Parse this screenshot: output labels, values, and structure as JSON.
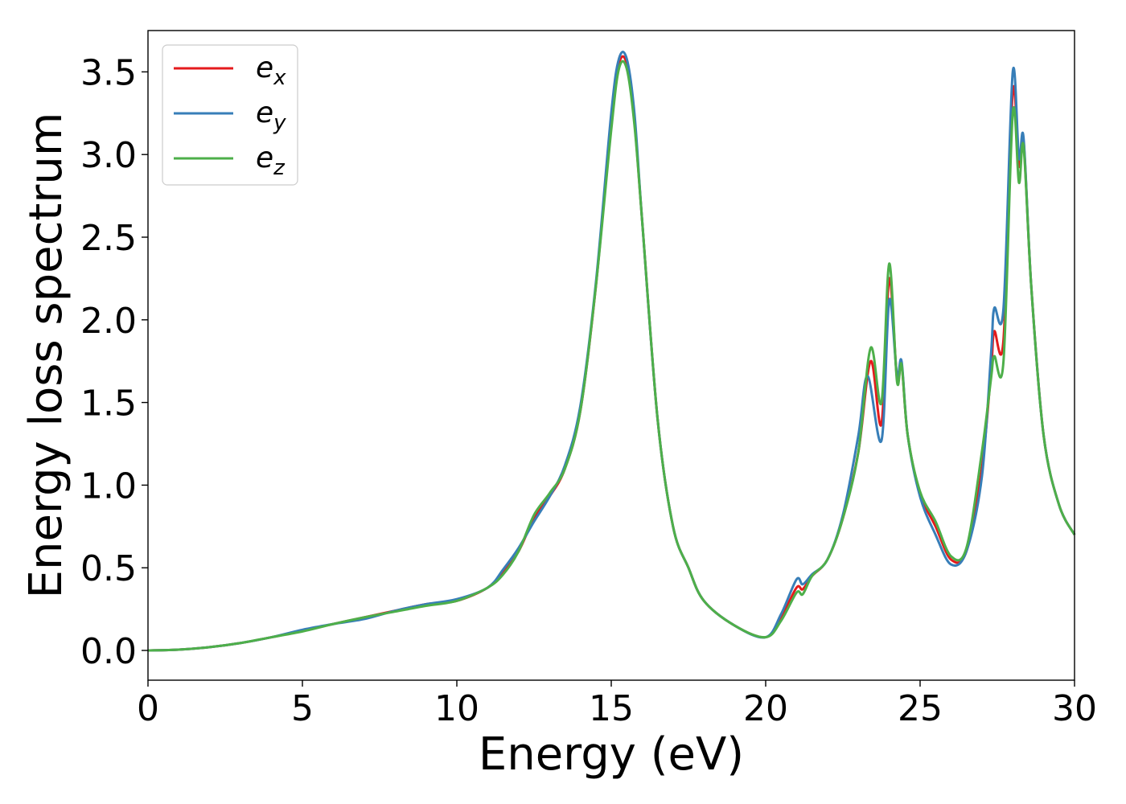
{
  "chart_data": {
    "type": "line",
    "xlabel": "Energy (eV)",
    "ylabel": "Energy loss spectrum",
    "xlim": [
      0,
      30
    ],
    "ylim": [
      -0.18,
      3.75
    ],
    "xticks": [
      0,
      5,
      10,
      15,
      20,
      25,
      30
    ],
    "xtick_labels": [
      "0",
      "5",
      "10",
      "15",
      "20",
      "25",
      "30"
    ],
    "yticks": [
      0.0,
      0.5,
      1.0,
      1.5,
      2.0,
      2.5,
      3.0,
      3.5
    ],
    "ytick_labels": [
      "0.0",
      "0.5",
      "1.0",
      "1.5",
      "2.0",
      "2.5",
      "3.0",
      "3.5"
    ],
    "grid": false,
    "legend_position": "top-left",
    "series": [
      {
        "name": "e_x",
        "label_base": "e",
        "label_sub": "x",
        "color": "#e41a1c",
        "points": [
          [
            0,
            0
          ],
          [
            1,
            0.005
          ],
          [
            2,
            0.02
          ],
          [
            3,
            0.045
          ],
          [
            4,
            0.08
          ],
          [
            5,
            0.12
          ],
          [
            6,
            0.16
          ],
          [
            7,
            0.2
          ],
          [
            8,
            0.24
          ],
          [
            9,
            0.28
          ],
          [
            10,
            0.3
          ],
          [
            11,
            0.38
          ],
          [
            11.5,
            0.48
          ],
          [
            12,
            0.6
          ],
          [
            12.5,
            0.8
          ],
          [
            13,
            0.93
          ],
          [
            13.5,
            1.1
          ],
          [
            14,
            1.45
          ],
          [
            14.5,
            2.2
          ],
          [
            15,
            3.2
          ],
          [
            15.25,
            3.55
          ],
          [
            15.5,
            3.55
          ],
          [
            15.75,
            3.2
          ],
          [
            16,
            2.6
          ],
          [
            16.5,
            1.4
          ],
          [
            17,
            0.75
          ],
          [
            17.5,
            0.5
          ],
          [
            18,
            0.3
          ],
          [
            19,
            0.15
          ],
          [
            20,
            0.08
          ],
          [
            20.5,
            0.2
          ],
          [
            21,
            0.38
          ],
          [
            21.2,
            0.37
          ],
          [
            21.5,
            0.45
          ],
          [
            22,
            0.55
          ],
          [
            22.5,
            0.8
          ],
          [
            23,
            1.2
          ],
          [
            23.4,
            1.75
          ],
          [
            23.75,
            1.37
          ],
          [
            24,
            2.25
          ],
          [
            24.25,
            1.65
          ],
          [
            24.4,
            1.73
          ],
          [
            24.6,
            1.3
          ],
          [
            25,
            0.95
          ],
          [
            25.5,
            0.75
          ],
          [
            26,
            0.55
          ],
          [
            26.5,
            0.6
          ],
          [
            27,
            1.1
          ],
          [
            27.3,
            1.7
          ],
          [
            27.4,
            1.93
          ],
          [
            27.7,
            1.88
          ],
          [
            28,
            3.38
          ],
          [
            28.2,
            2.93
          ],
          [
            28.35,
            3.08
          ],
          [
            28.6,
            2.2
          ],
          [
            29,
            1.3
          ],
          [
            29.5,
            0.88
          ],
          [
            30,
            0.7
          ]
        ]
      },
      {
        "name": "e_y",
        "label_base": "e",
        "label_sub": "y",
        "color": "#377eb8",
        "points": [
          [
            0,
            0
          ],
          [
            1,
            0.005
          ],
          [
            2,
            0.02
          ],
          [
            3,
            0.045
          ],
          [
            4,
            0.08
          ],
          [
            5,
            0.125
          ],
          [
            6,
            0.16
          ],
          [
            7,
            0.19
          ],
          [
            8,
            0.24
          ],
          [
            9,
            0.28
          ],
          [
            10,
            0.31
          ],
          [
            11,
            0.38
          ],
          [
            11.5,
            0.49
          ],
          [
            12,
            0.62
          ],
          [
            12.5,
            0.78
          ],
          [
            13,
            0.93
          ],
          [
            13.5,
            1.12
          ],
          [
            14,
            1.48
          ],
          [
            14.5,
            2.22
          ],
          [
            15,
            3.25
          ],
          [
            15.25,
            3.58
          ],
          [
            15.5,
            3.58
          ],
          [
            15.75,
            3.25
          ],
          [
            16,
            2.6
          ],
          [
            16.5,
            1.4
          ],
          [
            17,
            0.75
          ],
          [
            17.5,
            0.5
          ],
          [
            18,
            0.3
          ],
          [
            19,
            0.15
          ],
          [
            20,
            0.08
          ],
          [
            20.5,
            0.22
          ],
          [
            21,
            0.43
          ],
          [
            21.2,
            0.4
          ],
          [
            21.5,
            0.46
          ],
          [
            22,
            0.55
          ],
          [
            22.5,
            0.82
          ],
          [
            23,
            1.3
          ],
          [
            23.3,
            1.66
          ],
          [
            23.75,
            1.27
          ],
          [
            24,
            2.12
          ],
          [
            24.25,
            1.67
          ],
          [
            24.4,
            1.75
          ],
          [
            24.6,
            1.3
          ],
          [
            25,
            0.93
          ],
          [
            25.5,
            0.7
          ],
          [
            26,
            0.52
          ],
          [
            26.5,
            0.6
          ],
          [
            27,
            1.05
          ],
          [
            27.3,
            1.8
          ],
          [
            27.4,
            2.07
          ],
          [
            27.7,
            2.07
          ],
          [
            28,
            3.5
          ],
          [
            28.2,
            2.98
          ],
          [
            28.35,
            3.1
          ],
          [
            28.6,
            2.2
          ],
          [
            29,
            1.3
          ],
          [
            29.5,
            0.88
          ],
          [
            30,
            0.7
          ]
        ]
      },
      {
        "name": "e_z",
        "label_base": "e",
        "label_sub": "z",
        "color": "#4daf4a",
        "points": [
          [
            0,
            0
          ],
          [
            1,
            0.005
          ],
          [
            2,
            0.02
          ],
          [
            3,
            0.045
          ],
          [
            4,
            0.08
          ],
          [
            5,
            0.115
          ],
          [
            6,
            0.16
          ],
          [
            7,
            0.2
          ],
          [
            8,
            0.235
          ],
          [
            9,
            0.27
          ],
          [
            10,
            0.3
          ],
          [
            11,
            0.38
          ],
          [
            11.5,
            0.46
          ],
          [
            12,
            0.6
          ],
          [
            12.5,
            0.82
          ],
          [
            13,
            0.95
          ],
          [
            13.5,
            1.1
          ],
          [
            14,
            1.45
          ],
          [
            14.5,
            2.2
          ],
          [
            15,
            3.15
          ],
          [
            15.25,
            3.52
          ],
          [
            15.5,
            3.52
          ],
          [
            15.75,
            3.18
          ],
          [
            16,
            2.6
          ],
          [
            16.5,
            1.4
          ],
          [
            17,
            0.75
          ],
          [
            17.5,
            0.5
          ],
          [
            18,
            0.3
          ],
          [
            19,
            0.15
          ],
          [
            20,
            0.08
          ],
          [
            20.5,
            0.18
          ],
          [
            21,
            0.35
          ],
          [
            21.2,
            0.34
          ],
          [
            21.5,
            0.45
          ],
          [
            22,
            0.55
          ],
          [
            22.5,
            0.8
          ],
          [
            23,
            1.2
          ],
          [
            23.4,
            1.83
          ],
          [
            23.75,
            1.5
          ],
          [
            24,
            2.34
          ],
          [
            24.25,
            1.63
          ],
          [
            24.4,
            1.73
          ],
          [
            24.6,
            1.3
          ],
          [
            25,
            0.96
          ],
          [
            25.5,
            0.78
          ],
          [
            26,
            0.57
          ],
          [
            26.5,
            0.62
          ],
          [
            27,
            1.2
          ],
          [
            27.3,
            1.65
          ],
          [
            27.4,
            1.78
          ],
          [
            27.7,
            1.75
          ],
          [
            28,
            3.25
          ],
          [
            28.2,
            2.83
          ],
          [
            28.35,
            3.05
          ],
          [
            28.6,
            2.2
          ],
          [
            29,
            1.3
          ],
          [
            29.5,
            0.88
          ],
          [
            30,
            0.7
          ]
        ]
      }
    ]
  }
}
